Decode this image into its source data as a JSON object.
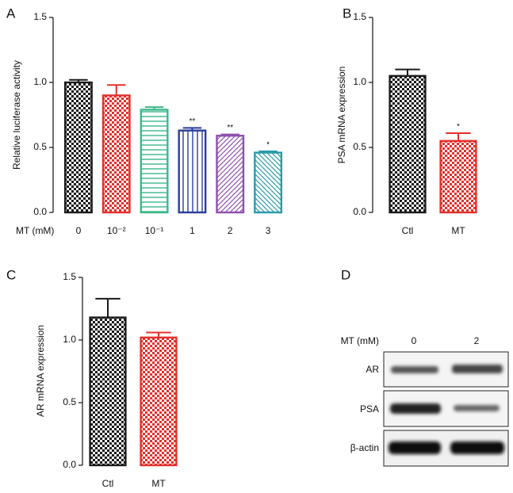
{
  "chart_data": [
    {
      "type": "bar",
      "panel": "A",
      "ylabel": "Relative luciferase activity",
      "xlabel": "MT (mM)",
      "categories": [
        "0",
        "10⁻²",
        "10⁻¹",
        "1",
        "2",
        "3"
      ],
      "values": [
        1.0,
        0.9,
        0.79,
        0.63,
        0.59,
        0.46
      ],
      "errors": [
        0.02,
        0.08,
        0.02,
        0.02,
        0.01,
        0.01
      ],
      "annotations": [
        null,
        null,
        null,
        "**",
        "**",
        "*"
      ],
      "colors": [
        "#1a1a1a",
        "#e3302b",
        "#3cb88a",
        "#2a3d9e",
        "#8e4fb0",
        "#2a9aa8"
      ],
      "patterns": [
        "checker",
        "checker",
        "horizontal",
        "vertical",
        "diagonal",
        "antidiagonal"
      ],
      "ylim": [
        0,
        1.5
      ],
      "yticks": [
        {
          "value": 0,
          "label": "0.0"
        },
        0.5,
        {
          "value": 1,
          "label": "1.0"
        },
        1.5
      ]
    },
    {
      "type": "bar",
      "panel": "B",
      "ylabel": "PSA mRNA expression",
      "categories": [
        "Ctl",
        "MT"
      ],
      "values": [
        1.05,
        0.55
      ],
      "errors": [
        0.05,
        0.06
      ],
      "annotations": [
        null,
        "*"
      ],
      "colors": [
        "#1a1a1a",
        "#e3302b"
      ],
      "patterns": [
        "checker",
        "checker"
      ],
      "ylim": [
        0,
        1.5
      ],
      "yticks": [
        {
          "value": 0,
          "label": "0.0"
        },
        0.5,
        {
          "value": 1,
          "label": "1.0"
        },
        1.5
      ]
    },
    {
      "type": "bar",
      "panel": "C",
      "ylabel": "AR mRNA expression",
      "categories": [
        "Ctl",
        "MT"
      ],
      "values": [
        1.18,
        1.02
      ],
      "errors": [
        0.15,
        0.04
      ],
      "annotations": [
        null,
        null
      ],
      "colors": [
        "#1a1a1a",
        "#e3302b"
      ],
      "patterns": [
        "checker",
        "checker"
      ],
      "ylim": [
        0,
        1.5
      ],
      "yticks": [
        {
          "value": 0,
          "label": "0.0"
        },
        0.5,
        {
          "value": 1,
          "label": "1.0"
        },
        1.5
      ]
    }
  ],
  "blot": {
    "panel": "D",
    "header": "MT (mM)",
    "lanes": [
      "0",
      "2"
    ],
    "rows": [
      "AR",
      "PSA",
      "β-actin"
    ]
  }
}
